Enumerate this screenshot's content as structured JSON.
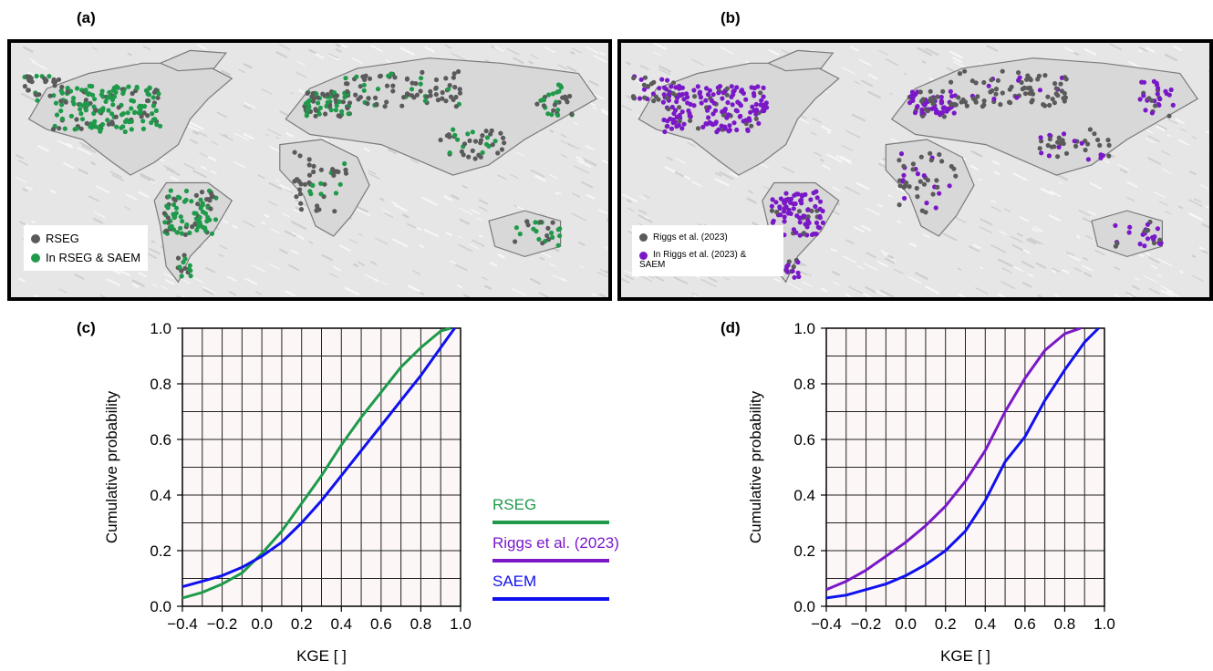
{
  "panels": {
    "a": "(a)",
    "b": "(b)",
    "c": "(c)",
    "d": "(d)"
  },
  "colors": {
    "rseg": "#1e9a4a",
    "riggs": "#7a18c8",
    "saem": "#1010f0",
    "gauge_grey": "#5a5a5a",
    "grid": "#222222",
    "plot_bg": "#fcf7f6"
  },
  "map_a": {
    "legend": [
      {
        "label": "RSEG",
        "color": "#5a5a5a"
      },
      {
        "label": "In RSEG & SAEM",
        "color": "#1e9a4a"
      }
    ]
  },
  "map_b": {
    "legend": [
      {
        "label": "Riggs et al. (2023)",
        "color": "#5a5a5a"
      },
      {
        "label": "In Riggs et al. (2023)  &",
        "label2": "SAEM",
        "color": "#7a18c8"
      }
    ]
  },
  "series_legend": [
    {
      "label": "RSEG",
      "color": "#1e9a4a"
    },
    {
      "label": "Riggs et al. (2023)",
      "color": "#7a18c8"
    },
    {
      "label": "SAEM",
      "color": "#1010f0"
    }
  ],
  "chart_data": [
    {
      "panel": "c",
      "type": "line",
      "xlabel": "KGE [ ]",
      "ylabel": "Cumulative probability",
      "xlim": [
        -0.4,
        1.0
      ],
      "ylim": [
        0.0,
        1.0
      ],
      "xticks": [
        "−0.4",
        "−0.2",
        "0.0",
        "0.2",
        "0.4",
        "0.6",
        "0.8",
        "1.0"
      ],
      "yticks": [
        "0.0",
        "0.2",
        "0.4",
        "0.6",
        "0.8",
        "1.0"
      ],
      "grid": true,
      "series": [
        {
          "name": "RSEG",
          "color": "#1e9a4a",
          "x": [
            -0.4,
            -0.3,
            -0.2,
            -0.1,
            0.0,
            0.1,
            0.2,
            0.3,
            0.4,
            0.5,
            0.6,
            0.7,
            0.8,
            0.9,
            0.95
          ],
          "y": [
            0.03,
            0.05,
            0.08,
            0.12,
            0.19,
            0.27,
            0.37,
            0.47,
            0.58,
            0.68,
            0.77,
            0.86,
            0.93,
            0.99,
            1.0
          ]
        },
        {
          "name": "SAEM",
          "color": "#1010f0",
          "x": [
            -0.4,
            -0.3,
            -0.2,
            -0.1,
            0.0,
            0.1,
            0.2,
            0.3,
            0.4,
            0.5,
            0.6,
            0.7,
            0.8,
            0.9,
            0.97
          ],
          "y": [
            0.07,
            0.09,
            0.11,
            0.14,
            0.18,
            0.23,
            0.3,
            0.38,
            0.47,
            0.56,
            0.65,
            0.74,
            0.83,
            0.93,
            1.0
          ]
        }
      ]
    },
    {
      "panel": "d",
      "type": "line",
      "xlabel": "KGE [ ]",
      "ylabel": "Cumulative probability",
      "xlim": [
        -0.4,
        1.0
      ],
      "ylim": [
        0.0,
        1.0
      ],
      "xticks": [
        "−0.4",
        "−0.2",
        "0.0",
        "0.2",
        "0.4",
        "0.6",
        "0.8",
        "1.0"
      ],
      "yticks": [
        "0.0",
        "0.2",
        "0.4",
        "0.6",
        "0.8",
        "1.0"
      ],
      "grid": true,
      "series": [
        {
          "name": "Riggs et al. (2023)",
          "color": "#7a18c8",
          "x": [
            -0.4,
            -0.3,
            -0.2,
            -0.1,
            0.0,
            0.1,
            0.2,
            0.3,
            0.4,
            0.5,
            0.6,
            0.7,
            0.8,
            0.88
          ],
          "y": [
            0.06,
            0.09,
            0.13,
            0.18,
            0.23,
            0.29,
            0.36,
            0.45,
            0.56,
            0.7,
            0.82,
            0.92,
            0.98,
            1.0
          ]
        },
        {
          "name": "SAEM",
          "color": "#1010f0",
          "x": [
            -0.4,
            -0.3,
            -0.2,
            -0.1,
            0.0,
            0.1,
            0.2,
            0.3,
            0.4,
            0.5,
            0.6,
            0.7,
            0.8,
            0.9,
            0.97
          ],
          "y": [
            0.03,
            0.04,
            0.06,
            0.08,
            0.11,
            0.15,
            0.2,
            0.27,
            0.38,
            0.52,
            0.61,
            0.74,
            0.85,
            0.95,
            1.0
          ]
        }
      ]
    }
  ]
}
